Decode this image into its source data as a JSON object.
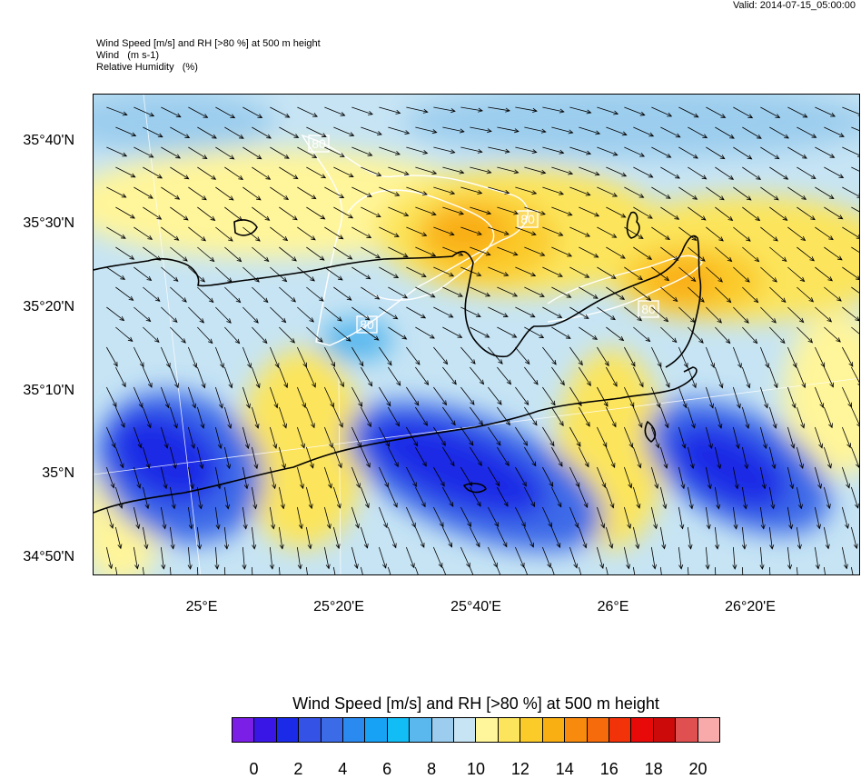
{
  "valid_time": "Valid: 2014-07-15_05:00:00",
  "header": {
    "line1": "Wind Speed [m/s] and RH [>80 %] at 500 m height",
    "line2": "Wind   (m s-1)",
    "line3": "Relative Humidity   (%)"
  },
  "map": {
    "lat_labels": [
      "35°40'N",
      "35°30'N",
      "35°20'N",
      "35°10'N",
      "35°N",
      "34°50'N"
    ],
    "lon_labels": [
      "25°E",
      "25°20'E",
      "25°40'E",
      "26°E",
      "26°20'E"
    ],
    "contour_label": "80",
    "contour_color": "#ffffff",
    "coastline_color": "#000000",
    "wind_arrow_color": "#000000"
  },
  "colorbar": {
    "title": "Wind Speed [m/s] and RH [>80 %] at 500 m height",
    "colors": [
      "#7b1fe6",
      "#3a16e6",
      "#1a2ae6",
      "#3552e6",
      "#3c6be8",
      "#2a8af0",
      "#18a2f5",
      "#12bcf5",
      "#5ab8ee",
      "#9ccdee",
      "#c6e4f4",
      "#fff59a",
      "#fce55c",
      "#fbcb2a",
      "#f9ae12",
      "#f88a0e",
      "#f66c0c",
      "#f23208",
      "#e80a08",
      "#cc0a0a",
      "#e05050",
      "#f8aaaa"
    ],
    "tick_labels": [
      "0",
      "2",
      "4",
      "6",
      "8",
      "10",
      "12",
      "14",
      "16",
      "18",
      "20"
    ]
  }
}
